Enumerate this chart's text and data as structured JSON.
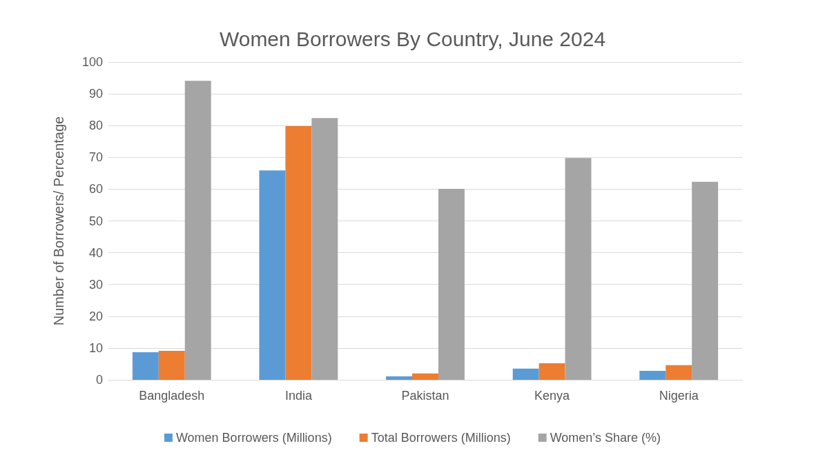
{
  "chart_data": {
    "type": "bar",
    "title": "Women Borrowers By Country, June 2024",
    "ylabel": "Number of Borrowers/ Percentage",
    "categories": [
      "Bangladesh",
      "India",
      "Pakistan",
      "Kenya",
      "Nigeria"
    ],
    "series": [
      {
        "name": "Women Borrowers (Millions)",
        "color": "#5b9bd5",
        "values": [
          8.7,
          65.9,
          1.1,
          3.5,
          2.8
        ]
      },
      {
        "name": "Total Borrowers (Millions)",
        "color": "#ed7d31",
        "values": [
          9.1,
          79.8,
          2.0,
          5.2,
          4.6
        ]
      },
      {
        "name": "Women’s Share (%)",
        "color": "#a5a5a5",
        "values": [
          94.1,
          82.4,
          60.1,
          69.8,
          62.3
        ]
      }
    ],
    "ylim": [
      0,
      100
    ],
    "yticks": [
      0,
      10,
      20,
      30,
      40,
      50,
      60,
      70,
      80,
      90,
      100
    ],
    "grid": "y",
    "legend": "bottom"
  }
}
